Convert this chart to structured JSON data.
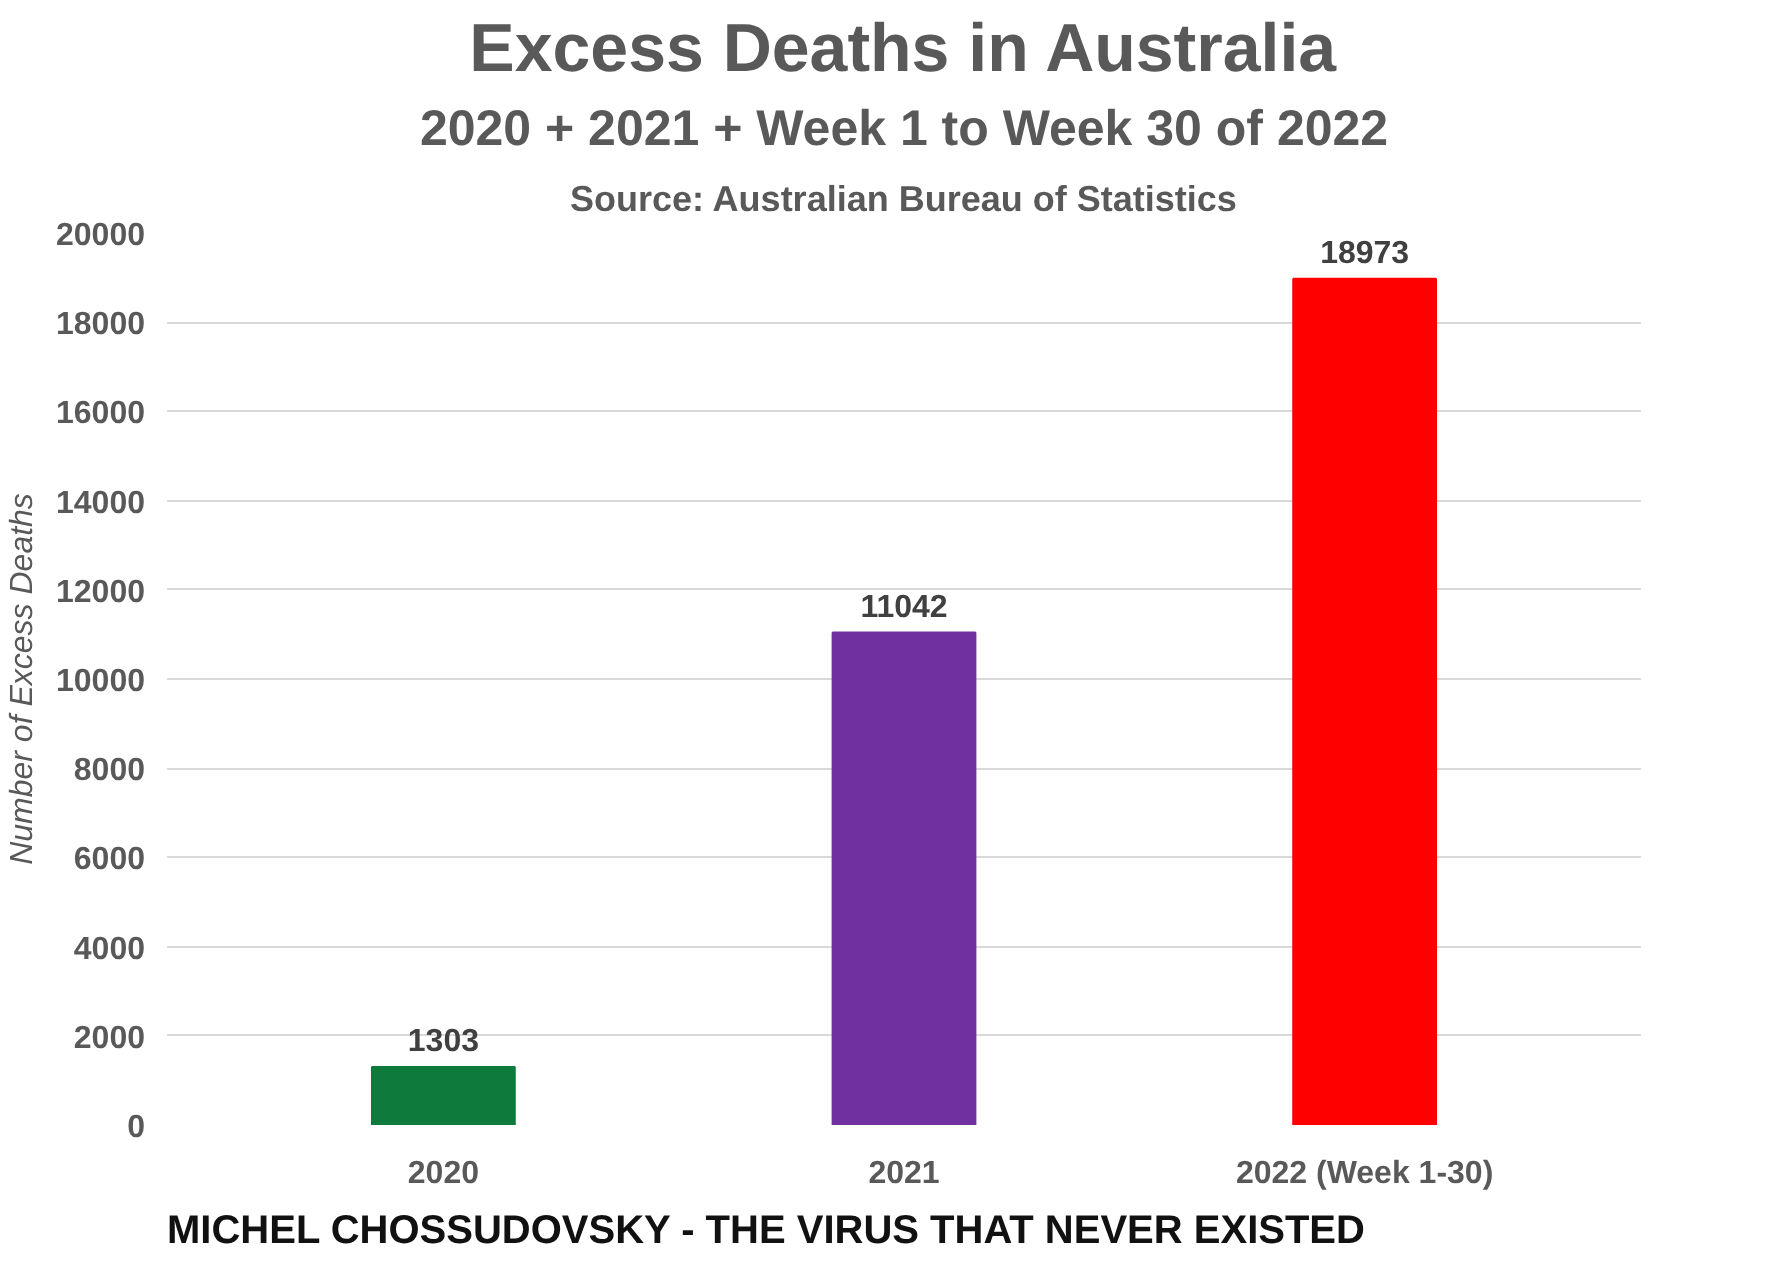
{
  "chart_data": {
    "type": "bar",
    "title": "Excess Deaths in Australia",
    "subtitle": "2020 + 2021 + Week 1 to Week 30 of 2022",
    "annotations": [
      "Source: Australian Bureau of Statistics",
      "MICHEL CHOSSUDOVSKY - THE VIRUS THAT NEVER EXISTED"
    ],
    "categories": [
      "2020",
      "2021",
      "2022 (Week 1-30)"
    ],
    "values": [
      1303,
      11042,
      18973
    ],
    "colors": [
      "#0e7a3c",
      "#7030a0",
      "#ff0000"
    ],
    "ylabel": "Number of Excess Deaths",
    "ylim": [
      0,
      20000
    ],
    "yticks": [
      0,
      2000,
      4000,
      6000,
      8000,
      10000,
      12000,
      14000,
      16000,
      18000,
      20000
    ],
    "grid": "y",
    "data_labels": true
  }
}
